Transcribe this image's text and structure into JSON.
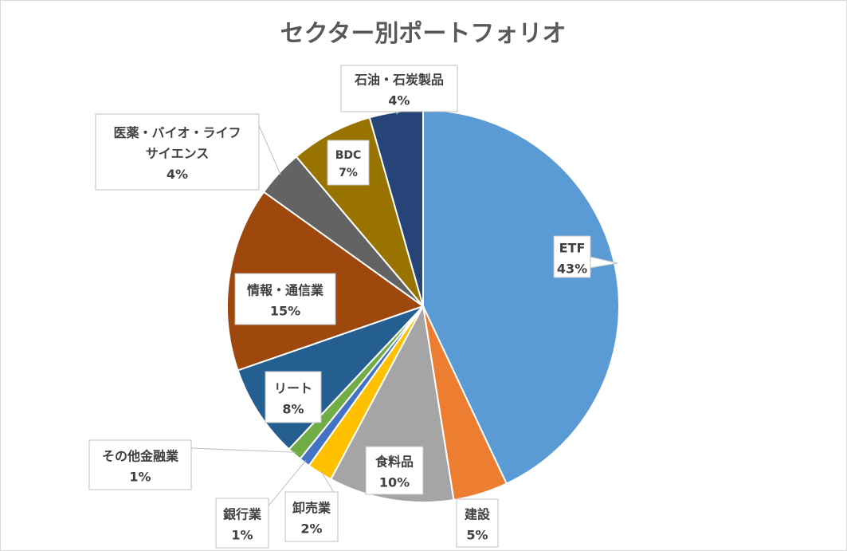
{
  "chart_data": {
    "type": "pie",
    "title": "セクター別ポートフォリオ",
    "slices": [
      {
        "label": "ETF",
        "pct_label": "43%",
        "value": 43,
        "color": "#5b9bd5"
      },
      {
        "label": "建設",
        "pct_label": "5%",
        "value": 4.5,
        "color": "#ed7d31"
      },
      {
        "label": "食料品",
        "pct_label": "10%",
        "value": 10.3,
        "color": "#a5a5a5"
      },
      {
        "label": "卸売業",
        "pct_label": "2%",
        "value": 2.1,
        "color": "#ffc000"
      },
      {
        "label": "銀行業",
        "pct_label": "1%",
        "value": 0.9,
        "color": "#4472c4"
      },
      {
        "label": "その他金融業",
        "pct_label": "1%",
        "value": 1.2,
        "color": "#70ad47"
      },
      {
        "label": "リート",
        "pct_label": "8%",
        "value": 7.7,
        "color": "#255e91"
      },
      {
        "label": "情報・通信業",
        "pct_label": "15%",
        "value": 15.2,
        "color": "#9e480e"
      },
      {
        "label": "医薬・バイオ・ライフサイエンス",
        "pct_label": "4%",
        "value": 3.9,
        "color": "#636363"
      },
      {
        "label": "BDC",
        "pct_label": "7%",
        "value": 6.8,
        "color": "#997300"
      },
      {
        "label": "石油・石炭製品",
        "pct_label": "4%",
        "value": 4.4,
        "color": "#264478"
      }
    ]
  }
}
